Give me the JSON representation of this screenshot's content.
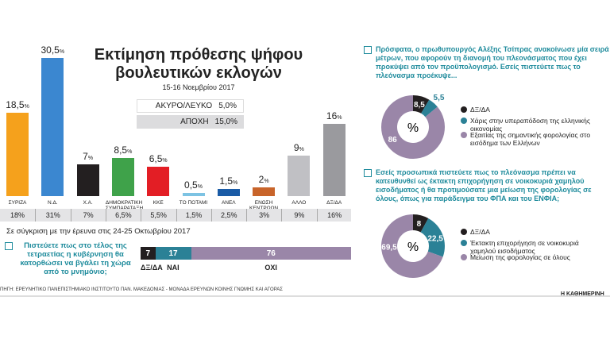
{
  "header": {
    "title_line1": "Εκτίμηση πρόθεσης ψήφου",
    "title_line2": "βουλευτικών εκλογών",
    "subtitle": "15-16 Νοεμβρίου 2017"
  },
  "other": {
    "invalid_label": "ΑΚΥΡΟ/ΛΕΥΚΟ",
    "invalid_value": "5,0%",
    "abstain_label": "ΑΠΟΧΗ",
    "abstain_value": "15,0%"
  },
  "compare_text": "Σε σύγκριση με την έρευνα στις 24-25 Οκτωβρίου 2017",
  "chart_data": [
    {
      "type": "bar",
      "title": "Εκτίμηση πρόθεσης ψήφου βουλευτικών εκλογών",
      "subtitle": "15-16 Νοεμβρίου 2017",
      "unit": "%",
      "categories": [
        "ΣΥΡΙΖΑ",
        "Ν.Δ.",
        "Χ.Α.",
        "ΔΗΜΟΚΡΑΤΙΚΗ ΣΥΜΠΑΡΑΤΑΞΗ",
        "ΚΚΕ",
        "ΤΟ ΠΟΤΑΜΙ",
        "ΑΝΕΛ",
        "ΕΝΩΣΗ ΚΕΝΤΡΩΩΝ",
        "ΑΛΛΟ",
        "ΔΞ/ΔΑ"
      ],
      "values": [
        18.5,
        30.5,
        7,
        8.5,
        6.5,
        0.5,
        1.5,
        2,
        9,
        16
      ],
      "value_labels": [
        "18,5",
        "30,5",
        "7",
        "8,5",
        "6,5",
        "0,5",
        "1,5",
        "2",
        "9",
        "16"
      ],
      "previous_values": [
        18,
        31,
        7,
        6.5,
        5.5,
        1.5,
        2.5,
        3,
        9,
        16
      ],
      "previous_labels": [
        "18%",
        "31%",
        "7%",
        "6,5%",
        "5,5%",
        "1,5%",
        "2,5%",
        "3%",
        "9%",
        "16%"
      ],
      "colors": [
        "#f5a11c",
        "#3b87d0",
        "#231f20",
        "#3fa24a",
        "#e31e25",
        "#7dc3e3",
        "#1a5ba6",
        "#c8642a",
        "#c0c0c4",
        "#9a9a9e"
      ]
    },
    {
      "type": "bar",
      "stacked": true,
      "question": "Πιστεύετε πως στο τέλος της τετραετίας η κυβέρνηση θα κατορθώσει να βγάλει τη χώρα από το μνημόνιο;",
      "categories": [
        "ΔΞ/ΔΑ",
        "ΝΑΙ",
        "ΟΧΙ"
      ],
      "values": [
        7,
        17,
        76
      ],
      "colors": [
        "#231f20",
        "#2b8196",
        "#9a86a8"
      ]
    },
    {
      "type": "pie",
      "donut": true,
      "center_label": "%",
      "question": "Πρόσφατα, ο πρωθυπουργός Αλέξης Τσίπρας ανακοίνωσε μία σειρά μέτρων, που αφορούν τη διανομή του πλεονάσματος που έχει προκύψει από τον προϋπολογισμό. Εσείς πιστεύετε πως το πλεόνασμα προέκυψε...",
      "categories": [
        "ΔΞ/ΔΑ",
        "Χάρις στην υπεραπόδοση της ελληνικής οικονομίας",
        "Εξαιτίας της σημαντικής φορολογίας στο εισόδημα των Ελλήνων"
      ],
      "values": [
        8.5,
        5.5,
        86
      ],
      "value_labels": [
        "8,5",
        "5,5",
        "86"
      ],
      "colors": [
        "#231f20",
        "#2b8196",
        "#9a86a8"
      ]
    },
    {
      "type": "pie",
      "donut": true,
      "center_label": "%",
      "question": "Εσείς προσωπικά πιστεύετε πως το πλεόνασμα πρέπει να κατευθυνθεί ως έκτακτη επιχορήγηση σε νοικοκυριά χαμηλού εισοδήματος ή θα προτιμούσατε μια μείωση της φορολογίας σε όλους, όπως για παράδειγμα του ΦΠΑ και του ΕΝΦΙΑ;",
      "categories": [
        "ΔΞ/ΔΑ",
        "Έκτακτη επιχορήγηση σε νοικοκυριά χαμηλού εισοδήματος",
        "Μείωση της φορολογίας σε όλους"
      ],
      "values": [
        8,
        22.5,
        69.5
      ],
      "value_labels": [
        "8",
        "22,5",
        "69,5"
      ],
      "colors": [
        "#231f20",
        "#2b8196",
        "#9a86a8"
      ]
    }
  ],
  "source": "ΠΗΓΗ: ΕΡΕΥΝΗΤΙΚΟ ΠΑΝΕΠΙΣΤΗΜΙΑΚΟ ΙΝΣΤΙΤΟΥΤΟ ΠΑΝ. ΜΑΚΕΔΟΝΙΑΣ - ΜΟΝΑΔΑ ΕΡΕΥΝΩΝ ΚΟΙΝΗΣ ΓΝΩΜΗΣ ΚΑΙ ΑΓΟΡΑΣ",
  "brand": "Η ΚΑΘΗΜΕΡΙΝΗ"
}
